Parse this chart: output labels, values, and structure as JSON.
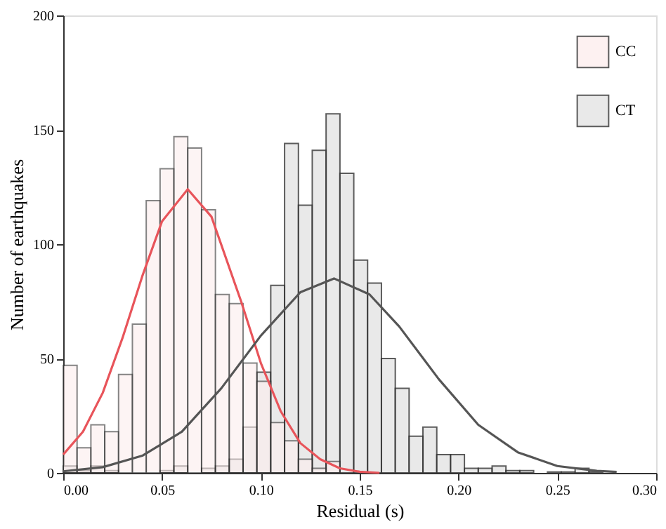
{
  "chart_data": {
    "type": "histogram",
    "xlabel": "Residual (s)",
    "ylabel": "Number of earthquakes",
    "bins": [
      0,
      0.007,
      0.014,
      0.021,
      0.028,
      0.035,
      0.042,
      0.049,
      0.056,
      0.063,
      0.07,
      0.077,
      0.084,
      0.091,
      0.098,
      0.105,
      0.112,
      0.119,
      0.126,
      0.133,
      0.14,
      0.147,
      0.154,
      0.161,
      0.168,
      0.175,
      0.182,
      0.189,
      0.196,
      0.203,
      0.21,
      0.217,
      0.224,
      0.231,
      0.238,
      0.245,
      0.252,
      0.259,
      0.266,
      0.273,
      0.28
    ],
    "series": [
      {
        "name": "CC",
        "color": "#fdeeee",
        "values": [
          47,
          11,
          21,
          18,
          43,
          65,
          119,
          133,
          147,
          142,
          115,
          78,
          74,
          48,
          40,
          22,
          14,
          6,
          2,
          5,
          0,
          0,
          0,
          0,
          0,
          0,
          0,
          0,
          0,
          0,
          0,
          0,
          0,
          0,
          0,
          0,
          0,
          0,
          0,
          0
        ]
      },
      {
        "name": "CT",
        "color": "#e4e4e4",
        "values": [
          3,
          1,
          3,
          1,
          0,
          0,
          0,
          1,
          3,
          0,
          2,
          3,
          6,
          20,
          44,
          82,
          144,
          117,
          141,
          157,
          131,
          93,
          83,
          50,
          37,
          16,
          20,
          8,
          8,
          2,
          2,
          3,
          1,
          1,
          0,
          0.4,
          0.4,
          2,
          0.5,
          0
        ]
      },
      {
        "type": "line",
        "color": "#e8545a",
        "x": [
          0,
          0.01,
          0.02,
          0.03,
          0.04,
          0.05,
          0.063,
          0.075,
          0.09,
          0.1,
          0.11,
          0.12,
          0.13,
          0.14,
          0.15,
          0.16
        ],
        "values": [
          8,
          18,
          35,
          59,
          86,
          110,
          124,
          112,
          75,
          48,
          27,
          13,
          6,
          2,
          0.5,
          0
        ]
      },
      {
        "type": "line",
        "color": "#555555",
        "x": [
          0,
          0.02,
          0.04,
          0.06,
          0.08,
          0.1,
          0.12,
          0.137,
          0.155,
          0.17,
          0.19,
          0.21,
          0.23,
          0.25,
          0.27,
          0.28
        ],
        "values": [
          0.7,
          2.5,
          7.5,
          18,
          37,
          60,
          79,
          85,
          78,
          64,
          41,
          21,
          9,
          3,
          0.9,
          0.4
        ]
      }
    ],
    "xlim": [
      0,
      0.3
    ],
    "xticks": [
      {
        "value": 0,
        "label": "0.00"
      },
      0.05,
      {
        "value": 0.1,
        "label": "0.10"
      },
      0.15,
      {
        "value": 0.2,
        "label": "0.20"
      },
      0.25,
      {
        "value": 0.3,
        "label": "0.30"
      }
    ],
    "ylim": [
      0,
      200
    ],
    "yticks": [
      0,
      50,
      100,
      150,
      200
    ],
    "grid": false,
    "legend": "top right"
  }
}
